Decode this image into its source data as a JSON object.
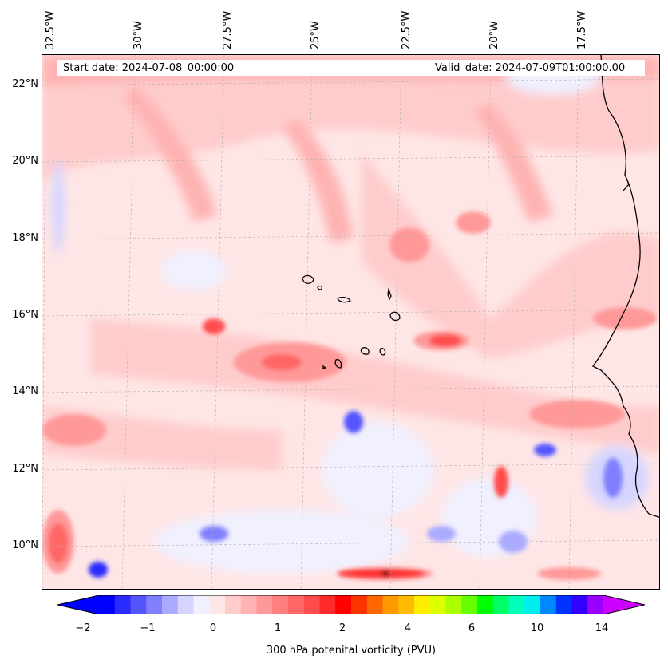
{
  "map": {
    "header": {
      "start_label": "Start date: 2024-07-08_00:00:00",
      "valid_label": "Valid_date: 2024-07-09T01:00:00.00"
    },
    "lon_labels": [
      "32.5°W",
      "30°W",
      "27.5°W",
      "25°W",
      "22.5°W",
      "20°W",
      "17.5°W"
    ],
    "lat_labels": [
      "22°N",
      "20°N",
      "18°N",
      "16°N",
      "14°N",
      "12°N",
      "10°N"
    ],
    "colorbar": {
      "title": "300 hPa potenital vorticity (PVU)",
      "tick_labels": [
        "−2",
        "−1",
        "0",
        "1",
        "2",
        "4",
        "6",
        "10",
        "14"
      ],
      "colors": [
        "#0000ff",
        "#2b2bff",
        "#5555ff",
        "#8080ff",
        "#aaaaff",
        "#d5d5ff",
        "#f0f0ff",
        "#ffe6e6",
        "#ffcccc",
        "#ffb3b3",
        "#ff9999",
        "#ff7f7f",
        "#ff6666",
        "#ff4c4c",
        "#ff2a2a",
        "#ff0000",
        "#ff3300",
        "#ff6600",
        "#ff9900",
        "#ffbb00",
        "#ffee00",
        "#ddff00",
        "#aaff00",
        "#66ff00",
        "#00ff00",
        "#00ff66",
        "#00ffbb",
        "#00eeee",
        "#0088ff",
        "#0033ff",
        "#3300ff",
        "#9900ff"
      ],
      "under_color": "#0000ff",
      "over_color": "#cc00ff"
    },
    "colors": {
      "land_line": "#000000",
      "grid_line": "#b0b0b0"
    },
    "icons": [
      "colorbar-low-arrow",
      "colorbar-high-arrow"
    ]
  }
}
